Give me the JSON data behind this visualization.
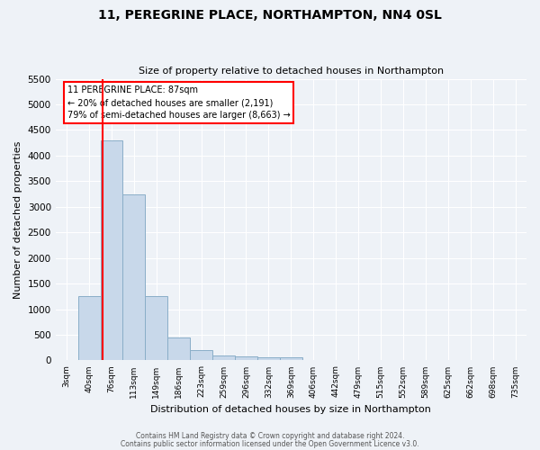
{
  "title": "11, PEREGRINE PLACE, NORTHAMPTON, NN4 0SL",
  "subtitle": "Size of property relative to detached houses in Northampton",
  "xlabel": "Distribution of detached houses by size in Northampton",
  "ylabel": "Number of detached properties",
  "footer_line1": "Contains HM Land Registry data © Crown copyright and database right 2024.",
  "footer_line2": "Contains public sector information licensed under the Open Government Licence v3.0.",
  "bin_labels": [
    "3sqm",
    "40sqm",
    "76sqm",
    "113sqm",
    "149sqm",
    "186sqm",
    "223sqm",
    "259sqm",
    "296sqm",
    "332sqm",
    "369sqm",
    "406sqm",
    "442sqm",
    "479sqm",
    "515sqm",
    "552sqm",
    "589sqm",
    "625sqm",
    "662sqm",
    "698sqm",
    "735sqm"
  ],
  "bar_values": [
    0,
    1250,
    4300,
    3250,
    1250,
    450,
    200,
    100,
    75,
    60,
    60,
    0,
    0,
    0,
    0,
    0,
    0,
    0,
    0,
    0,
    0
  ],
  "bar_color": "#c8d8ea",
  "bar_edge_color": "#8aaec8",
  "ylim": [
    0,
    5500
  ],
  "yticks": [
    0,
    500,
    1000,
    1500,
    2000,
    2500,
    3000,
    3500,
    4000,
    4500,
    5000,
    5500
  ],
  "annotation_title": "11 PEREGRINE PLACE: 87sqm",
  "annotation_line1": "← 20% of detached houses are smaller (2,191)",
  "annotation_line2": "79% of semi-detached houses are larger (8,663) →",
  "bg_color": "#eef2f7",
  "plot_bg_color": "#eef2f7",
  "grid_color": "#ffffff",
  "red_line_bin_index": 2
}
